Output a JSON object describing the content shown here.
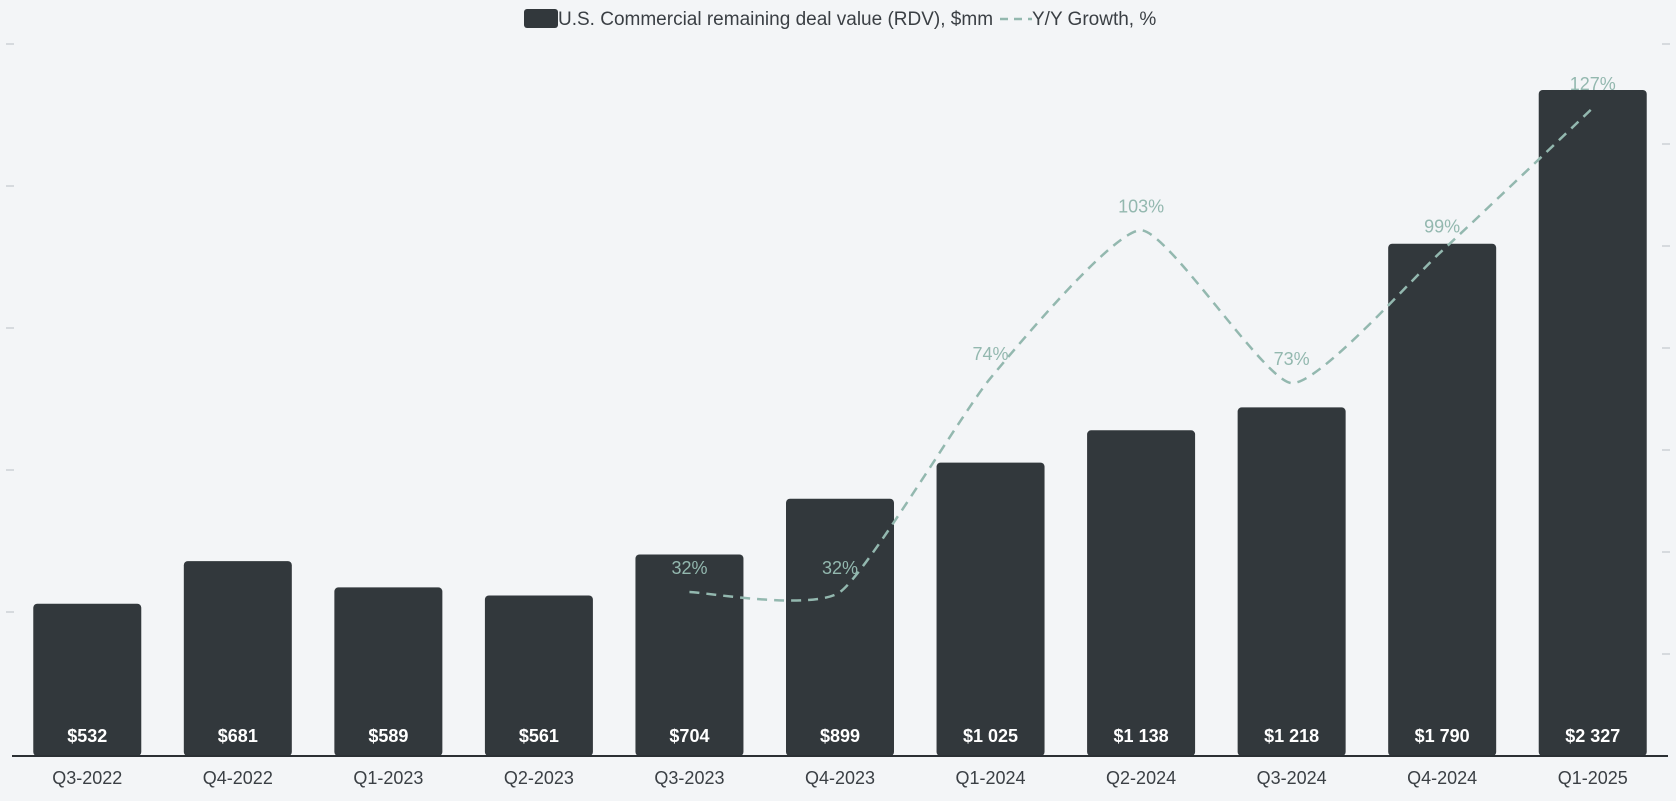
{
  "chart_data": {
    "type": "bar",
    "title": "",
    "xlabel": "",
    "ylabel": "",
    "categories": [
      "Q3-2022",
      "Q4-2022",
      "Q1-2023",
      "Q2-2023",
      "Q3-2023",
      "Q4-2023",
      "Q1-2024",
      "Q2-2024",
      "Q3-2024",
      "Q4-2024",
      "Q1-2025"
    ],
    "series": [
      {
        "name": "U.S. Commercial remaining deal value (RDV), $mm",
        "kind": "bar",
        "color": "#32383c",
        "values": [
          532,
          681,
          589,
          561,
          704,
          899,
          1025,
          1138,
          1218,
          1790,
          2327
        ],
        "labels": [
          "$532",
          "$681",
          "$589",
          "$561",
          "$704",
          "$899",
          "$1 025",
          "$1 138",
          "$1 218",
          "$1 790",
          "$2 327"
        ]
      },
      {
        "name": "Y/Y Growth, %",
        "kind": "line",
        "style": "dashed",
        "color": "#93b8af",
        "values": [
          null,
          null,
          null,
          null,
          32,
          32,
          74,
          103,
          73,
          99,
          127
        ],
        "labels": [
          null,
          null,
          null,
          null,
          "32%",
          "32%",
          "74%",
          "103%",
          "73%",
          "99%",
          "127%"
        ]
      }
    ],
    "ylim": [
      0,
      2500
    ],
    "y2lim": [
      0,
      180
    ],
    "grid": false,
    "legend": "top-center"
  }
}
